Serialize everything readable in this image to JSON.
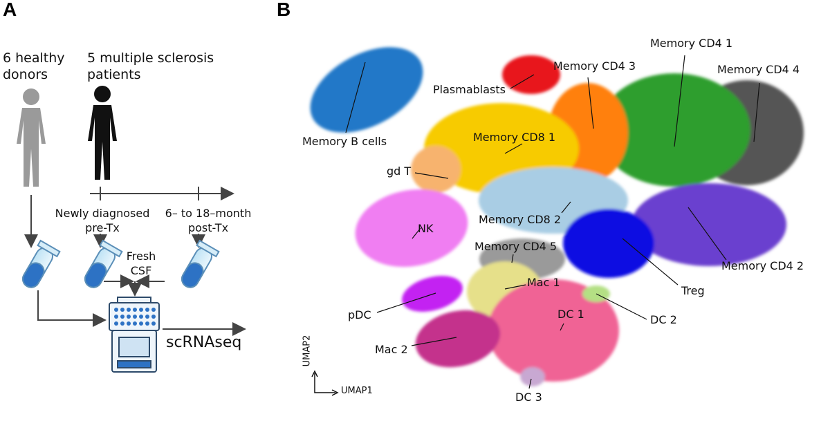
{
  "panels": [
    "A",
    "B"
  ],
  "overview": {
    "healthy": "6 healthy donors",
    "patients": "5 multiple sclerosis patients",
    "timepoint_1": "Newly diagnosed pre-Tx",
    "timepoint_2": "6– to 18–month post-Tx",
    "sample": "Fresh CSF",
    "method": "scRNAseq"
  },
  "umap": {
    "x_label": "UMAP1",
    "y_label": "UMAP2",
    "clusters": [
      "Memory B cells",
      "Plasmablasts",
      "Memory CD4 3",
      "Memory CD4 1",
      "Memory CD4 4",
      "Memory CD8 1",
      "gd T",
      "NK",
      "Memory CD8 2",
      "Memory CD4 5",
      "Treg",
      "Memory CD4 2",
      "Mac 1",
      "pDC",
      "DC 2",
      "DC 1",
      "Mac 2",
      "DC 3"
    ]
  }
}
